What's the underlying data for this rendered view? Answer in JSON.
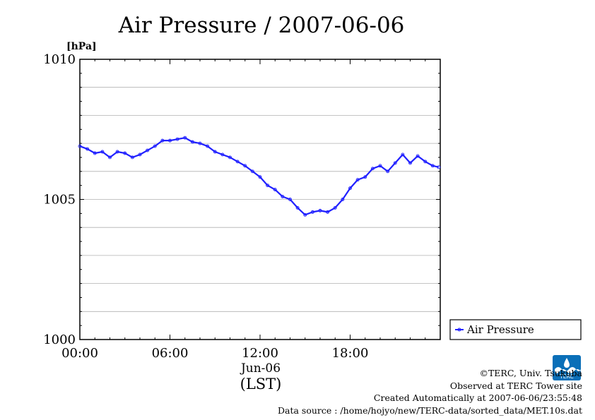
{
  "chart_data": {
    "type": "line",
    "title": "Air Pressure / 2007-06-06",
    "ylabel": "[hPa]",
    "xlabel": "(LST)",
    "date_label": "Jun-06",
    "ylim": [
      1000,
      1010
    ],
    "xlim_hours": [
      0,
      24
    ],
    "yticks": [
      1000,
      1005,
      1010
    ],
    "ytick_labels": [
      "1000",
      "1005",
      "1010"
    ],
    "xticks_hours": [
      0,
      6,
      12,
      18
    ],
    "xtick_labels": [
      "00:00",
      "06:00",
      "12:00",
      "18:00"
    ],
    "grid": true,
    "legend_position": "right",
    "series": [
      {
        "name": "Air Pressure",
        "color": "#2020ff",
        "x_hours": [
          0,
          0.5,
          1,
          1.5,
          2,
          2.5,
          3,
          3.5,
          4,
          4.5,
          5,
          5.5,
          6,
          6.5,
          7,
          7.5,
          8,
          8.5,
          9,
          9.5,
          10,
          10.5,
          11,
          11.5,
          12,
          12.5,
          13,
          13.5,
          14,
          14.5,
          15,
          15.5,
          16,
          16.5,
          17,
          17.5,
          18,
          18.5,
          19,
          19.5,
          20,
          20.5,
          21,
          21.5,
          22,
          22.5,
          23,
          23.5,
          23.9
        ],
        "values": [
          1006.9,
          1006.8,
          1006.65,
          1006.7,
          1006.5,
          1006.7,
          1006.65,
          1006.5,
          1006.6,
          1006.75,
          1006.9,
          1007.1,
          1007.1,
          1007.15,
          1007.2,
          1007.05,
          1007.0,
          1006.9,
          1006.7,
          1006.6,
          1006.5,
          1006.35,
          1006.2,
          1006.0,
          1005.8,
          1005.5,
          1005.35,
          1005.1,
          1005.0,
          1004.7,
          1004.45,
          1004.55,
          1004.6,
          1004.55,
          1004.7,
          1005.0,
          1005.4,
          1005.7,
          1005.8,
          1006.1,
          1006.2,
          1006.0,
          1006.3,
          1006.6,
          1006.3,
          1006.55,
          1006.35,
          1006.2,
          1006.15
        ]
      }
    ]
  },
  "credits": {
    "copyright": "©TERC, Univ. Tsukuba",
    "observed": "Observed at TERC Tower site",
    "created": "Created Automatically at 2007-06-06/23:55:48",
    "source": "Data source : /home/hojyo/new/TERC-data/sorted_data/MET.10s.dat"
  },
  "logo": {
    "text": "TERC",
    "color": "#0a6fb8"
  }
}
